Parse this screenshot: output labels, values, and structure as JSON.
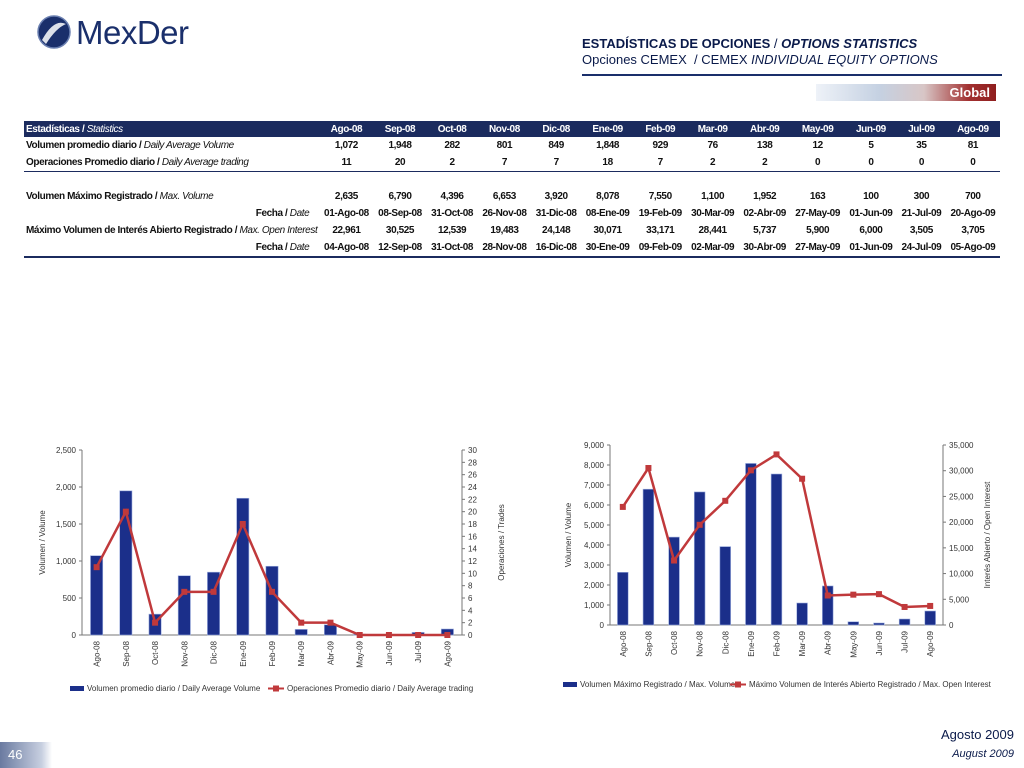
{
  "brand": {
    "name": "MexDer"
  },
  "header": {
    "title_es": "ESTADÍSTICAS DE OPCIONES",
    "title_sep": "/",
    "title_en": "OPTIONS STATISTICS",
    "subtitle_es": "Opciones CEMEX",
    "subtitle_sep": "/",
    "subtitle_en_plain": "CEMEX",
    "subtitle_en_italic": "INDIVIDUAL EQUITY OPTIONS",
    "global_label": "Global"
  },
  "table": {
    "header_label_es": "Estadísticas /",
    "header_label_en": "Statistics",
    "months": [
      "Ago-08",
      "Sep-08",
      "Oct-08",
      "Nov-08",
      "Dic-08",
      "Ene-09",
      "Feb-09",
      "Mar-09",
      "Abr-09",
      "May-09",
      "Jun-09",
      "Jul-09",
      "Ago-09"
    ],
    "rows_top": [
      {
        "label_es": "Volumen promedio diario /",
        "label_en": "Daily Average Volume",
        "values": [
          "1,072",
          "1,948",
          "282",
          "801",
          "849",
          "1,848",
          "929",
          "76",
          "138",
          "12",
          "5",
          "35",
          "81"
        ]
      },
      {
        "label_es": "Operaciones Promedio diario /",
        "label_en": "Daily Average trading",
        "values": [
          "11",
          "20",
          "2",
          "7",
          "7",
          "18",
          "7",
          "2",
          "2",
          "0",
          "0",
          "0",
          "0"
        ]
      }
    ],
    "rows_bottom": [
      {
        "label_es": "Volumen Máximo Registrado /",
        "label_en": "Max. Volume",
        "values": [
          "2,635",
          "6,790",
          "4,396",
          "6,653",
          "3,920",
          "8,078",
          "7,550",
          "1,100",
          "1,952",
          "163",
          "100",
          "300",
          "700"
        ]
      },
      {
        "label_es": "Fecha /",
        "label_en": "Date",
        "values": [
          "01-Ago-08",
          "08-Sep-08",
          "31-Oct-08",
          "26-Nov-08",
          "31-Dic-08",
          "08-Ene-09",
          "19-Feb-09",
          "30-Mar-09",
          "02-Abr-09",
          "27-May-09",
          "01-Jun-09",
          "21-Jul-09",
          "20-Ago-09"
        ]
      },
      {
        "label_es": "Máximo Volumen de Interés Abierto Registrado /",
        "label_en": "Max. Open Interest",
        "values": [
          "22,961",
          "30,525",
          "12,539",
          "19,483",
          "24,148",
          "30,071",
          "33,171",
          "28,441",
          "5,737",
          "5,900",
          "6,000",
          "3,505",
          "3,705"
        ]
      },
      {
        "label_es": "Fecha /",
        "label_en": "Date",
        "values": [
          "04-Ago-08",
          "12-Sep-08",
          "31-Oct-08",
          "28-Nov-08",
          "16-Dic-08",
          "30-Ene-09",
          "09-Feb-09",
          "02-Mar-09",
          "30-Abr-09",
          "27-May-09",
          "01-Jun-09",
          "24-Jul-09",
          "05-Ago-09"
        ]
      }
    ]
  },
  "chart_data": [
    {
      "type": "bar+line",
      "categories": [
        "Ago-08",
        "Sep-08",
        "Oct-08",
        "Nov-08",
        "Dic-08",
        "Ene-09",
        "Feb-09",
        "Mar-09",
        "Abr-09",
        "May-09",
        "Jun-09",
        "Jul-09",
        "Ago-09"
      ],
      "series": [
        {
          "name": "Volumen promedio diario / Daily Average Volume",
          "kind": "bar",
          "axis": "left",
          "color": "#1b2f8a",
          "values": [
            1072,
            1948,
            282,
            801,
            849,
            1848,
            929,
            76,
            138,
            12,
            5,
            35,
            81
          ]
        },
        {
          "name": "Operaciones Promedio diario / Daily Average trading",
          "kind": "line",
          "axis": "right",
          "color": "#c0393b",
          "values": [
            11,
            20,
            2,
            7,
            7,
            18,
            7,
            2,
            2,
            0,
            0,
            0,
            0
          ]
        }
      ],
      "ylabel_left": "Volumen / Volume",
      "ylabel_right": "Operaciones / Trades",
      "ylim_left": [
        0,
        2500
      ],
      "yticks_left": [
        0,
        500,
        1000,
        1500,
        2000,
        2500
      ],
      "yticklabels_left": [
        "0",
        "500",
        "1,000",
        "1,500",
        "2,000",
        "2,500"
      ],
      "ylim_right": [
        0,
        30
      ],
      "yticks_right": [
        0,
        2,
        4,
        6,
        8,
        10,
        12,
        14,
        16,
        18,
        20,
        22,
        24,
        26,
        28,
        30
      ],
      "yticklabels_right": [
        "0",
        "2",
        "4",
        "6",
        "8",
        "10",
        "12",
        "14",
        "16",
        "18",
        "20",
        "22",
        "24",
        "26",
        "28",
        "30"
      ],
      "legend": "bottom"
    },
    {
      "type": "bar+line",
      "categories": [
        "Ago-08",
        "Sep-08",
        "Oct-08",
        "Nov-08",
        "Dic-08",
        "Ene-09",
        "Feb-09",
        "Mar-09",
        "Abr-09",
        "May-09",
        "Jun-09",
        "Jul-09",
        "Ago-09"
      ],
      "series": [
        {
          "name": "Volumen Máximo Registrado / Max. Volume",
          "kind": "bar",
          "axis": "left",
          "color": "#1b2f8a",
          "values": [
            2635,
            6790,
            4396,
            6653,
            3920,
            8078,
            7550,
            1100,
            1952,
            163,
            100,
            300,
            700
          ]
        },
        {
          "name": "Máximo Volumen de Interés Abierto Registrado / Max. Open Interest",
          "kind": "line",
          "axis": "right",
          "color": "#c0393b",
          "values": [
            22961,
            30525,
            12539,
            19483,
            24148,
            30071,
            33171,
            28441,
            5737,
            5900,
            6000,
            3505,
            3705
          ]
        }
      ],
      "ylabel_left": "Volumen / Volume",
      "ylabel_right": "Interés Abierto / Open Interest",
      "ylim_left": [
        0,
        9000
      ],
      "yticks_left": [
        0,
        1000,
        2000,
        3000,
        4000,
        5000,
        6000,
        7000,
        8000,
        9000
      ],
      "yticklabels_left": [
        "0",
        "1,000",
        "2,000",
        "3,000",
        "4,000",
        "5,000",
        "6,000",
        "7,000",
        "8,000",
        "9,000"
      ],
      "ylim_right": [
        0,
        35000
      ],
      "yticks_right": [
        0,
        5000,
        10000,
        15000,
        20000,
        25000,
        30000,
        35000
      ],
      "yticklabels_right": [
        "0",
        "5,000",
        "10,000",
        "15,000",
        "20,000",
        "25,000",
        "30,000",
        "35,000"
      ],
      "legend": "bottom"
    }
  ],
  "footer": {
    "date_es": "Agosto 2009",
    "date_en": "August 2009",
    "page_number": "46"
  }
}
